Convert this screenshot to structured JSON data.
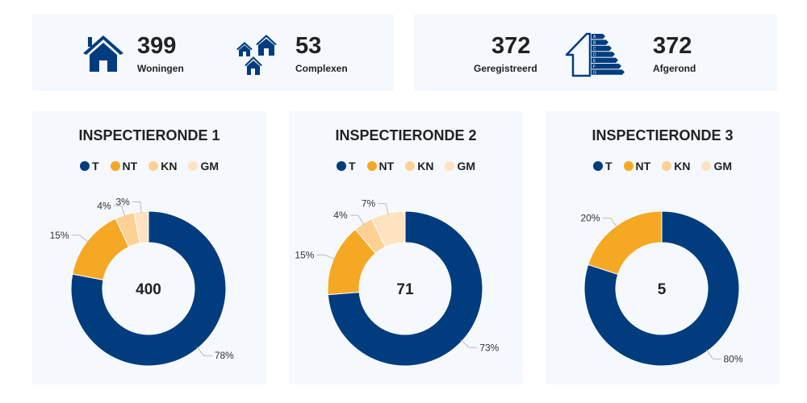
{
  "stats": {
    "woningen": {
      "value": "399",
      "label": "Woningen",
      "icon": "house-icon"
    },
    "complexen": {
      "value": "53",
      "label": "Complexen",
      "icon": "houses-icon"
    },
    "geregistreerd": {
      "value": "372",
      "label": "Geregistreerd",
      "icon": "energy-label-icon"
    },
    "afgerond": {
      "value": "372",
      "label": "Afgerond"
    }
  },
  "energy_classes": [
    "A",
    "B",
    "C",
    "D",
    "E",
    "F",
    "G"
  ],
  "colors": {
    "T": "#013d7e",
    "NT": "#f5a824",
    "KN": "#fcd193",
    "GM": "#fde3c0"
  },
  "chart_data": [
    {
      "type": "pie",
      "donut": true,
      "title": "INSPECTIERONDE 1",
      "center_label": "400",
      "legend": [
        "T",
        "NT",
        "KN",
        "GM"
      ],
      "categories": [
        "T",
        "NT",
        "KN",
        "GM"
      ],
      "values": [
        78,
        15,
        4,
        3
      ],
      "labels": [
        "78%",
        "15%",
        "4%",
        "3%"
      ]
    },
    {
      "type": "pie",
      "donut": true,
      "title": "INSPECTIERONDE 2",
      "center_label": "71",
      "legend": [
        "T",
        "NT",
        "KN",
        "GM"
      ],
      "categories": [
        "T",
        "NT",
        "KN",
        "GM"
      ],
      "values": [
        73,
        15,
        4,
        7
      ],
      "labels": [
        "73%",
        "15%",
        "4%",
        "7%"
      ]
    },
    {
      "type": "pie",
      "donut": true,
      "title": "INSPECTIERONDE 3",
      "center_label": "5",
      "legend": [
        "T",
        "NT",
        "KN",
        "GM"
      ],
      "categories": [
        "T",
        "NT"
      ],
      "values": [
        80,
        20
      ],
      "labels": [
        "80%",
        "20%"
      ]
    }
  ]
}
